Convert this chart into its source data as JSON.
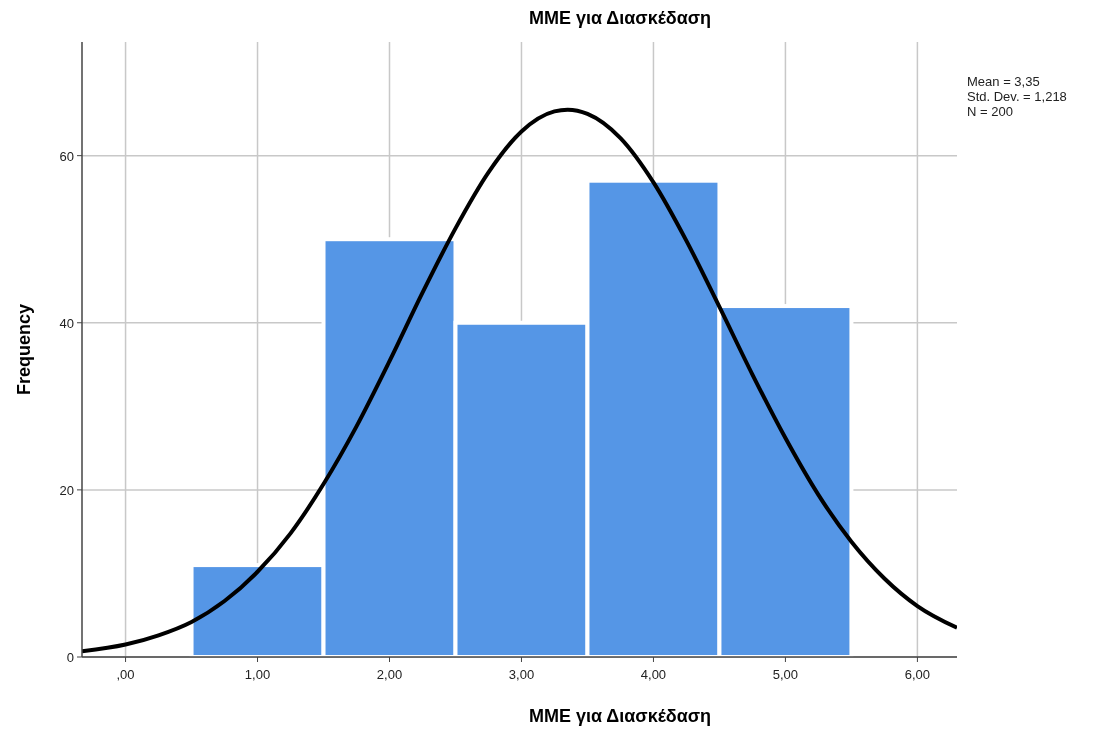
{
  "chart_data": {
    "type": "histogram",
    "title": "MME για Διασκέδαση",
    "xlabel": "MME για Διασκέδαση",
    "ylabel": "Frequency",
    "annotations": [
      "Mean = 3,35",
      "Std. Dev. = 1,218",
      "N = 200"
    ],
    "series": [
      {
        "bins": [
          0.5,
          1.5,
          2.5,
          3.5,
          4.5,
          5.5
        ],
        "values": [
          11,
          50,
          40,
          57,
          42
        ],
        "color": "#5596e6"
      },
      {
        "type": "line",
        "color": "#000000",
        "x": [
          -0.33,
          0,
          0.25,
          0.5,
          0.75,
          1,
          1.25,
          1.5,
          1.75,
          2,
          2.25,
          2.5,
          2.75,
          3,
          3.25,
          3.35,
          3.5,
          3.75,
          4,
          4.25,
          4.5,
          4.75,
          5,
          5.25,
          5.5,
          5.75,
          6,
          6.3
        ],
        "values": [
          0.7,
          1.5,
          2.6,
          4.2,
          6.7,
          10.2,
          14.8,
          20.7,
          27.6,
          35.4,
          43.6,
          51.3,
          58.0,
          62.9,
          65.3,
          65.5,
          65.0,
          62.1,
          56.8,
          49.8,
          41.9,
          33.8,
          26.2,
          19.4,
          13.8,
          9.4,
          6.1,
          3.5
        ]
      }
    ],
    "xlim": [
      -0.33,
      6.3
    ],
    "xticks": [
      {
        "value": 0,
        "label": ",00"
      },
      {
        "value": 1,
        "label": "1,00"
      },
      {
        "value": 2,
        "label": "2,00"
      },
      {
        "value": 3,
        "label": "3,00"
      },
      {
        "value": 4,
        "label": "4,00"
      },
      {
        "value": 5,
        "label": "5,00"
      },
      {
        "value": 6,
        "label": "6,00"
      }
    ],
    "ylim": [
      0,
      73.6
    ],
    "yticks": [
      0,
      20,
      40,
      60
    ],
    "grid": true,
    "line_style": "solid"
  }
}
